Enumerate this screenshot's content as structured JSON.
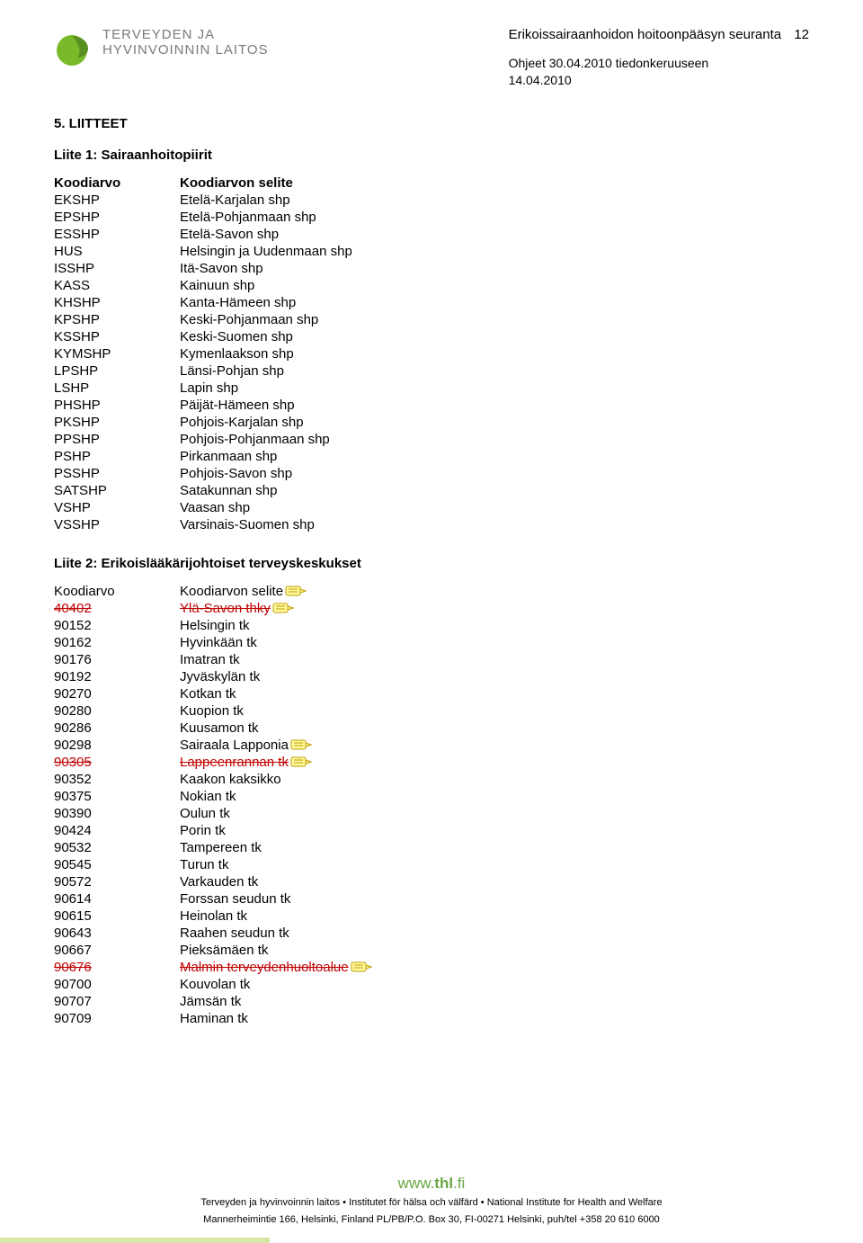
{
  "header": {
    "logo_line1": "TERVEYDEN JA",
    "logo_line2": "HYVINVOINNIN LAITOS",
    "top_title": "Erikoissairaanhoidon hoitoonpääsyn seuranta",
    "page_number": "12",
    "sub_line1": "Ohjeet 30.04.2010 tiedonkeruuseen",
    "sub_line2": "14.04.2010"
  },
  "section": {
    "heading": "5. LIITTEET",
    "liite1_title": "Liite 1: Sairaanhoitopiirit",
    "liite2_title": "Liite 2: Erikoislääkärijohtoiset terveyskeskukset"
  },
  "table1": {
    "header_col1": "Koodiarvo",
    "header_col2": "Koodiarvon selite",
    "rows": [
      {
        "code": "EKSHP",
        "desc": "Etelä-Karjalan shp"
      },
      {
        "code": "EPSHP",
        "desc": "Etelä-Pohjanmaan shp"
      },
      {
        "code": "ESSHP",
        "desc": "Etelä-Savon shp"
      },
      {
        "code": "HUS",
        "desc": "Helsingin ja Uudenmaan shp"
      },
      {
        "code": "ISSHP",
        "desc": "Itä-Savon shp"
      },
      {
        "code": "KASS",
        "desc": "Kainuun shp"
      },
      {
        "code": "KHSHP",
        "desc": "Kanta-Hämeen shp"
      },
      {
        "code": "KPSHP",
        "desc": "Keski-Pohjanmaan shp"
      },
      {
        "code": "KSSHP",
        "desc": "Keski-Suomen shp"
      },
      {
        "code": "KYMSHP",
        "desc": "Kymenlaakson shp"
      },
      {
        "code": "LPSHP",
        "desc": "Länsi-Pohjan shp"
      },
      {
        "code": "LSHP",
        "desc": "Lapin shp"
      },
      {
        "code": "PHSHP",
        "desc": "Päijät-Hämeen shp"
      },
      {
        "code": "PKSHP",
        "desc": "Pohjois-Karjalan shp"
      },
      {
        "code": "PPSHP",
        "desc": "Pohjois-Pohjanmaan shp"
      },
      {
        "code": "PSHP",
        "desc": "Pirkanmaan shp"
      },
      {
        "code": "PSSHP",
        "desc": "Pohjois-Savon shp"
      },
      {
        "code": "SATSHP",
        "desc": "Satakunnan shp"
      },
      {
        "code": "VSHP",
        "desc": "Vaasan shp"
      },
      {
        "code": "VSSHP",
        "desc": "Varsinais-Suomen shp"
      }
    ]
  },
  "table2": {
    "header_col1": "Koodiarvo",
    "header_col2": "Koodiarvon selite",
    "rows": [
      {
        "code": "40402",
        "desc": "Ylä-Savon thky",
        "strike": true,
        "annot": true
      },
      {
        "code": "90152",
        "desc": "Helsingin tk"
      },
      {
        "code": "90162",
        "desc": "Hyvinkään tk"
      },
      {
        "code": "90176",
        "desc": "Imatran tk"
      },
      {
        "code": "90192",
        "desc": "Jyväskylän tk"
      },
      {
        "code": "90270",
        "desc": "Kotkan tk"
      },
      {
        "code": "90280",
        "desc": "Kuopion tk"
      },
      {
        "code": "90286",
        "desc": "Kuusamon tk"
      },
      {
        "code": "90298",
        "desc": "Sairaala Lapponia",
        "annot": true
      },
      {
        "code": "90305",
        "desc": "Lappeenrannan tk",
        "strike": true,
        "annot": true
      },
      {
        "code": "90352",
        "desc": "Kaakon kaksikko"
      },
      {
        "code": "90375",
        "desc": "Nokian tk"
      },
      {
        "code": "90390",
        "desc": "Oulun tk"
      },
      {
        "code": "90424",
        "desc": "Porin tk"
      },
      {
        "code": "90532",
        "desc": "Tampereen tk"
      },
      {
        "code": "90545",
        "desc": "Turun tk"
      },
      {
        "code": "90572",
        "desc": "Varkauden tk"
      },
      {
        "code": "90614",
        "desc": "Forssan seudun tk"
      },
      {
        "code": "90615",
        "desc": "Heinolan tk"
      },
      {
        "code": "90643",
        "desc": "Raahen seudun tk"
      },
      {
        "code": "90667",
        "desc": "Pieksämäen tk"
      },
      {
        "code": "90676",
        "desc": "Malmin terveydenhuoltoalue",
        "strike": true,
        "annot": true
      },
      {
        "code": "90700",
        "desc": "Kouvolan tk"
      },
      {
        "code": "90707",
        "desc": "Jämsän tk"
      },
      {
        "code": "90709",
        "desc": "Haminan tk"
      }
    ]
  },
  "footer": {
    "url_prefix": "www.",
    "url_bold": "thl",
    "url_suffix": ".fi",
    "line1": "Terveyden ja hyvinvoinnin laitos • Institutet för hälsa och välfärd • National Institute for Health and Welfare",
    "line2": "Mannerheimintie 166, Helsinki, Finland PL/PB/P.O. Box 30, FI-00271 Helsinki, puh/tel +358 20 610 6000"
  },
  "colors": {
    "logo_green": "#7ab929",
    "logo_gray": "#7a7a7a",
    "strike_red": "#c00000",
    "annot_yellow": "#fff9a0",
    "annot_border": "#c0a000",
    "footer_green": "#6aa844",
    "bar_green": "#d8e6a5"
  }
}
